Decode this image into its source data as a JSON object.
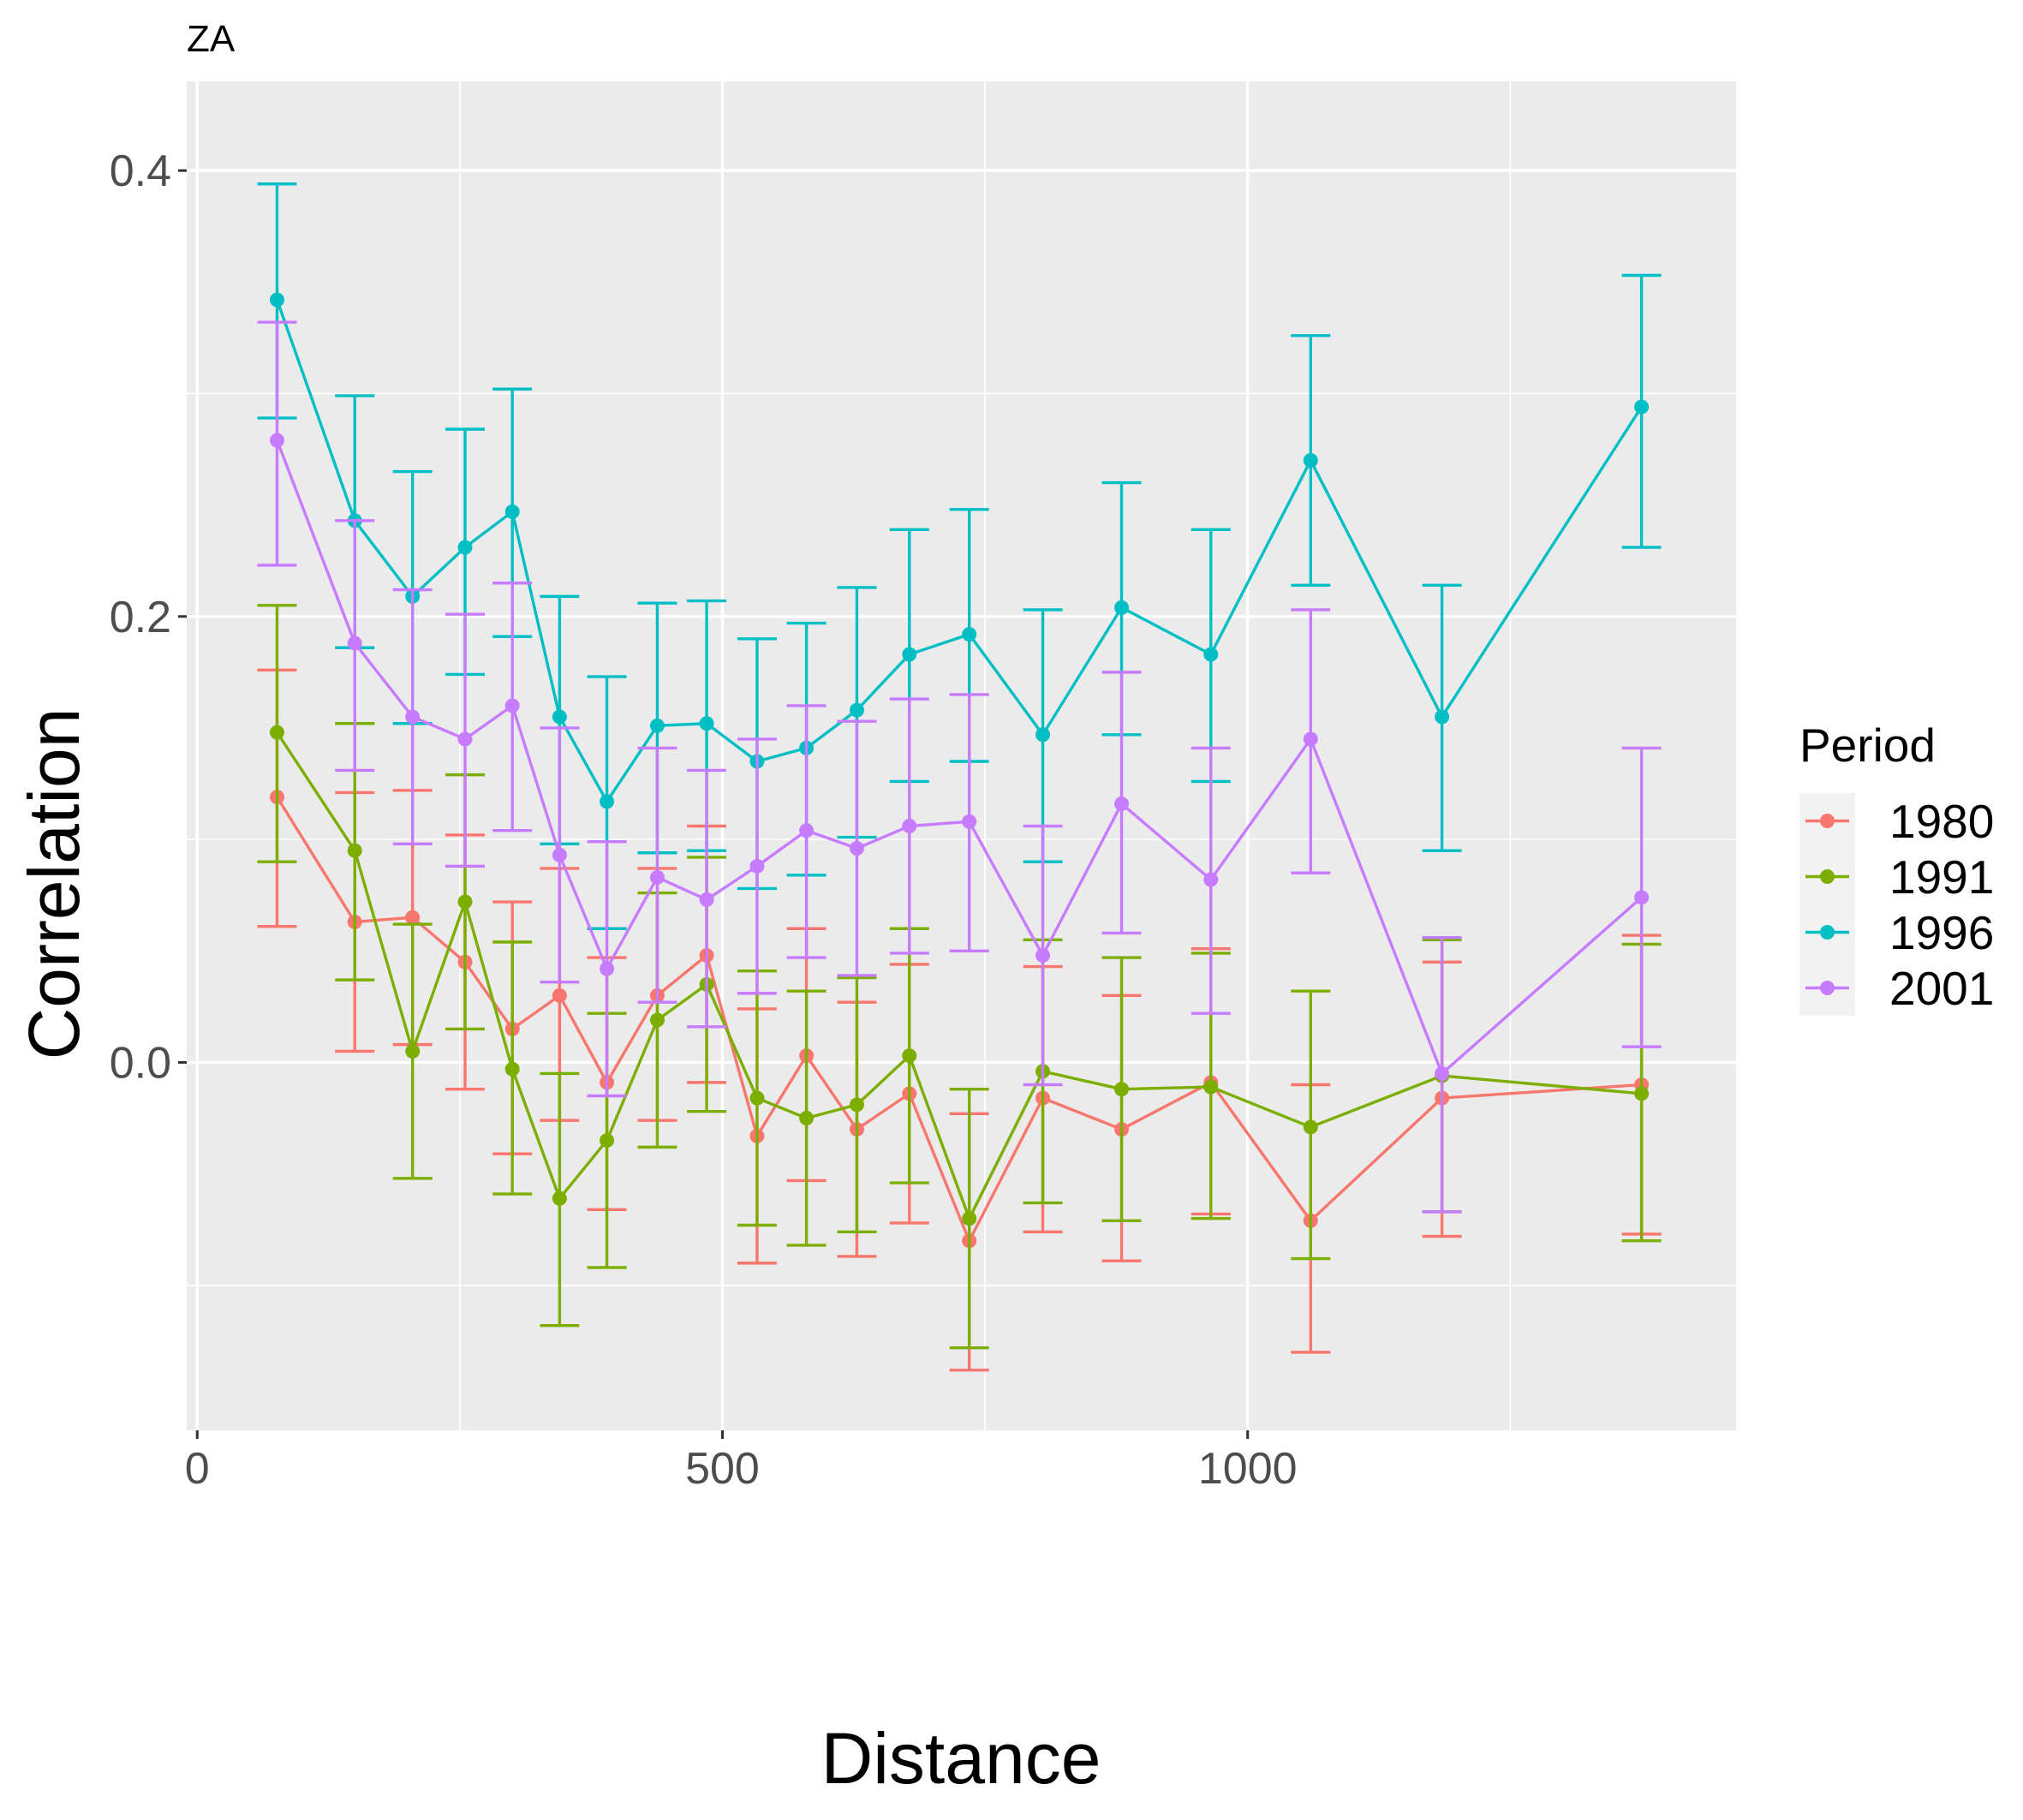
{
  "chart_data": {
    "type": "line",
    "title": "ZA",
    "xlabel": "Distance",
    "ylabel": "Correlation",
    "xlim": [
      -10,
      1465
    ],
    "ylim": [
      -0.165,
      0.44
    ],
    "x_ticks": [
      0,
      500,
      1000
    ],
    "x_tick_labels": [
      "0",
      "500",
      "1000"
    ],
    "y_ticks": [
      0.0,
      0.2,
      0.4
    ],
    "y_tick_labels": [
      "0.0",
      "0.2",
      "0.4"
    ],
    "grid": true,
    "legend": {
      "title": "Period",
      "position": "right"
    },
    "x": [
      76,
      150,
      205,
      255,
      300,
      345,
      390,
      438,
      485,
      533,
      580,
      628,
      678,
      735,
      805,
      880,
      965,
      1060,
      1185,
      1375
    ],
    "series": [
      {
        "name": "1980",
        "color": "#F8766D",
        "y": [
          0.119,
          0.063,
          0.065,
          0.045,
          0.015,
          0.03,
          -0.009,
          0.03,
          0.048,
          -0.033,
          0.003,
          -0.03,
          -0.014,
          -0.08,
          -0.016,
          -0.03,
          -0.009,
          -0.071,
          -0.016,
          -0.01
        ],
        "low": [
          0.061,
          0.005,
          0.008,
          -0.012,
          -0.041,
          -0.026,
          -0.066,
          -0.026,
          -0.009,
          -0.09,
          -0.053,
          -0.087,
          -0.072,
          -0.138,
          -0.076,
          -0.089,
          -0.068,
          -0.13,
          -0.078,
          -0.077
        ],
        "high": [
          0.176,
          0.121,
          0.122,
          0.102,
          0.072,
          0.087,
          0.047,
          0.087,
          0.106,
          0.024,
          0.06,
          0.027,
          0.044,
          -0.023,
          0.043,
          0.03,
          0.051,
          -0.01,
          0.045,
          0.057
        ]
      },
      {
        "name": "1991",
        "color": "#7CAE00",
        "y": [
          0.148,
          0.095,
          0.005,
          0.072,
          -0.003,
          -0.061,
          -0.035,
          0.019,
          0.035,
          -0.016,
          -0.025,
          -0.019,
          0.003,
          -0.07,
          -0.004,
          -0.012,
          -0.011,
          -0.029,
          -0.006,
          -0.014
        ],
        "low": [
          0.09,
          0.037,
          -0.052,
          0.015,
          -0.059,
          -0.118,
          -0.092,
          -0.038,
          -0.022,
          -0.073,
          -0.082,
          -0.076,
          -0.054,
          -0.128,
          -0.063,
          -0.071,
          -0.07,
          -0.088,
          -0.067,
          -0.08
        ],
        "high": [
          0.205,
          0.152,
          0.062,
          0.129,
          0.054,
          -0.005,
          0.022,
          0.076,
          0.092,
          0.041,
          0.032,
          0.038,
          0.06,
          -0.012,
          0.055,
          0.047,
          0.049,
          0.032,
          0.055,
          0.053
        ]
      },
      {
        "name": "1996",
        "color": "#00BFC4",
        "y": [
          0.342,
          0.243,
          0.209,
          0.231,
          0.247,
          0.155,
          0.117,
          0.151,
          0.152,
          0.135,
          0.141,
          0.158,
          0.183,
          0.192,
          0.147,
          0.204,
          0.183,
          0.27,
          0.155,
          0.294
        ],
        "low": [
          0.289,
          0.186,
          0.152,
          0.174,
          0.191,
          0.098,
          0.06,
          0.094,
          0.095,
          0.078,
          0.084,
          0.101,
          0.126,
          0.135,
          0.09,
          0.147,
          0.126,
          0.214,
          0.095,
          0.231
        ],
        "high": [
          0.394,
          0.299,
          0.265,
          0.284,
          0.302,
          0.209,
          0.173,
          0.206,
          0.207,
          0.19,
          0.197,
          0.213,
          0.239,
          0.248,
          0.203,
          0.26,
          0.239,
          0.326,
          0.214,
          0.353
        ]
      },
      {
        "name": "2001",
        "color": "#C77CFF",
        "y": [
          0.279,
          0.188,
          0.155,
          0.145,
          0.16,
          0.093,
          0.042,
          0.083,
          0.073,
          0.088,
          0.104,
          0.096,
          0.106,
          0.108,
          0.048,
          0.116,
          0.082,
          0.145,
          -0.005,
          0.074
        ],
        "low": [
          0.223,
          0.131,
          0.098,
          0.088,
          0.104,
          0.036,
          -0.015,
          0.027,
          0.016,
          0.031,
          0.047,
          0.039,
          0.049,
          0.05,
          -0.01,
          0.058,
          0.022,
          0.085,
          -0.067,
          0.007
        ],
        "high": [
          0.332,
          0.243,
          0.212,
          0.201,
          0.215,
          0.15,
          0.099,
          0.141,
          0.131,
          0.145,
          0.16,
          0.153,
          0.163,
          0.165,
          0.106,
          0.175,
          0.141,
          0.203,
          0.056,
          0.141
        ]
      }
    ]
  }
}
